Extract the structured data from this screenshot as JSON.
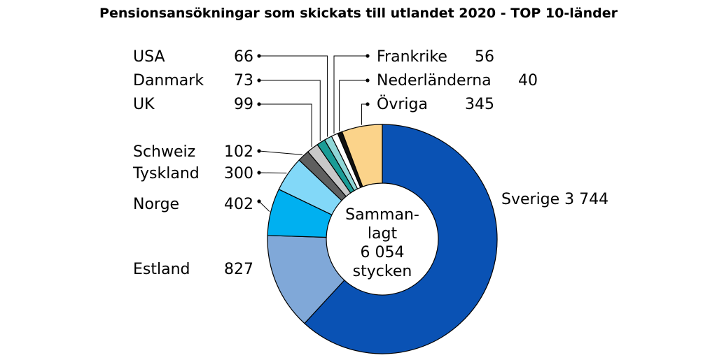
{
  "chart_data": {
    "type": "pie",
    "title": "Pensionsansökningar som skickats till utlandet 2020 - TOP 10-länder",
    "total_label": [
      "Samman-",
      "lagt",
      "6 054",
      "stycken"
    ],
    "slices": [
      {
        "name": "Sverige",
        "value": 3744,
        "value_label": "3 744",
        "color": "#0a52b4"
      },
      {
        "name": "Estland",
        "value": 827,
        "value_label": "827",
        "color": "#80a8d8"
      },
      {
        "name": "Norge",
        "value": 402,
        "value_label": "402",
        "color": "#00b0f0"
      },
      {
        "name": "Tyskland",
        "value": 300,
        "value_label": "300",
        "color": "#82d8f8"
      },
      {
        "name": "Schweiz",
        "value": 102,
        "value_label": "102",
        "color": "#5f5f5f"
      },
      {
        "name": "UK",
        "value": 99,
        "value_label": "99",
        "color": "#c8c8c8"
      },
      {
        "name": "Danmark",
        "value": 73,
        "value_label": "73",
        "color": "#1a9c96"
      },
      {
        "name": "USA",
        "value": 66,
        "value_label": "66",
        "color": "#8fd6d6"
      },
      {
        "name": "Frankrike",
        "value": 56,
        "value_label": "56",
        "color": "#ffffff"
      },
      {
        "name": "Nederländerna",
        "value": 40,
        "value_label": "40",
        "color": "#111111"
      },
      {
        "name": "Övriga",
        "value": 345,
        "value_label": "345",
        "color": "#fbd38a"
      }
    ]
  }
}
